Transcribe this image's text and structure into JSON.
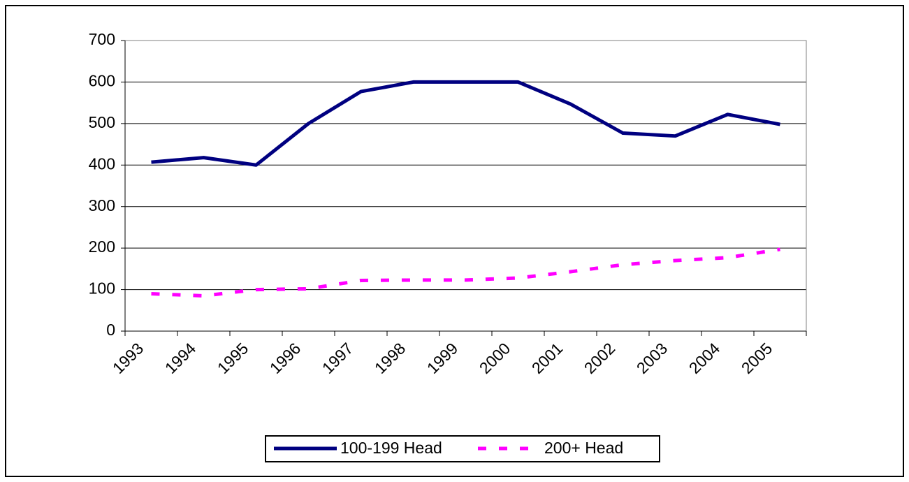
{
  "chart_data": {
    "type": "line",
    "categories": [
      "1993",
      "1994",
      "1995",
      "1996",
      "1997",
      "1998",
      "1999",
      "2000",
      "2001",
      "2002",
      "2003",
      "2004",
      "2005"
    ],
    "series": [
      {
        "name": "100-199 Head",
        "color": "#000080",
        "dashed": false,
        "values": [
          407,
          418,
          400,
          500,
          577,
          600,
          600,
          600,
          547,
          477,
          470,
          522,
          498
        ]
      },
      {
        "name": "200+ Head",
        "color": "#ff00ff",
        "dashed": true,
        "values": [
          90,
          85,
          100,
          102,
          122,
          123,
          123,
          128,
          143,
          160,
          170,
          177,
          197
        ]
      }
    ],
    "ylim": [
      0,
      700
    ],
    "yticks": [
      0,
      100,
      200,
      300,
      400,
      500,
      600,
      700
    ],
    "grid": true,
    "legend": "bottom"
  }
}
